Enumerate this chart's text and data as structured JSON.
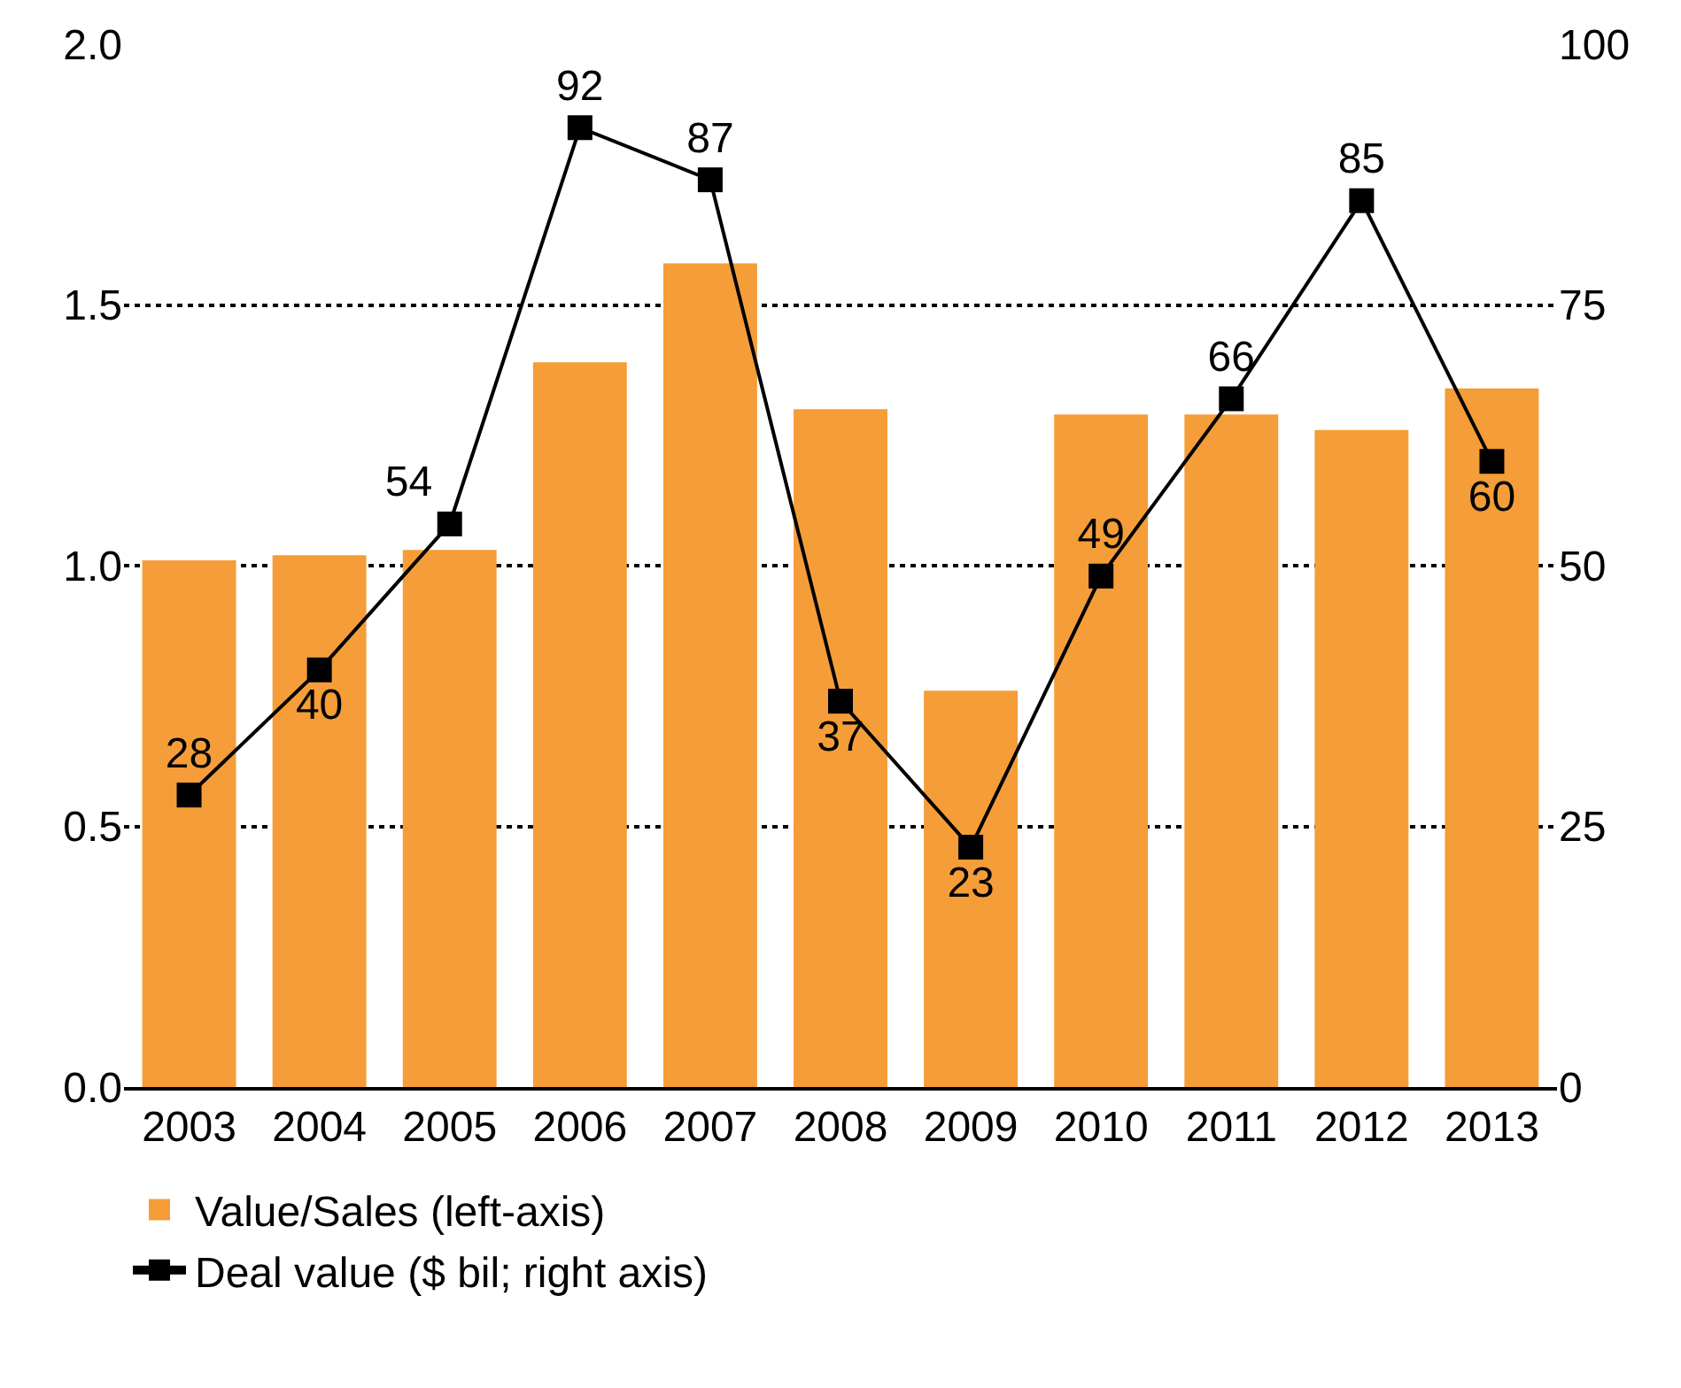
{
  "chart_data": {
    "type": "bar",
    "categories": [
      "2003",
      "2004",
      "2005",
      "2006",
      "2007",
      "2008",
      "2009",
      "2010",
      "2011",
      "2012",
      "2013"
    ],
    "series": [
      {
        "name": "Value/Sales (left-axis)",
        "color": "#f59d38",
        "values": [
          1.01,
          1.02,
          1.03,
          1.39,
          1.58,
          1.3,
          0.76,
          1.29,
          1.29,
          1.26,
          1.34
        ]
      },
      {
        "name": "Deal value ($ bil; right axis)",
        "type": "line",
        "axis": "y2",
        "color": "#000000",
        "marker": "square",
        "data_labels": true,
        "values": [
          28,
          40,
          54,
          92,
          87,
          37,
          23,
          49,
          66,
          85,
          60
        ]
      }
    ],
    "ylim": [
      0,
      2
    ],
    "yticks": [
      {
        "value": 0,
        "label": "0.0"
      },
      0.5,
      {
        "value": 1,
        "label": "1.0"
      },
      1.5,
      {
        "value": 2,
        "label": "2.0"
      }
    ],
    "y2lim": [
      0,
      100
    ],
    "y2ticks": [
      0,
      25,
      50,
      75,
      100
    ],
    "grid": "y",
    "legend": "bottom"
  }
}
